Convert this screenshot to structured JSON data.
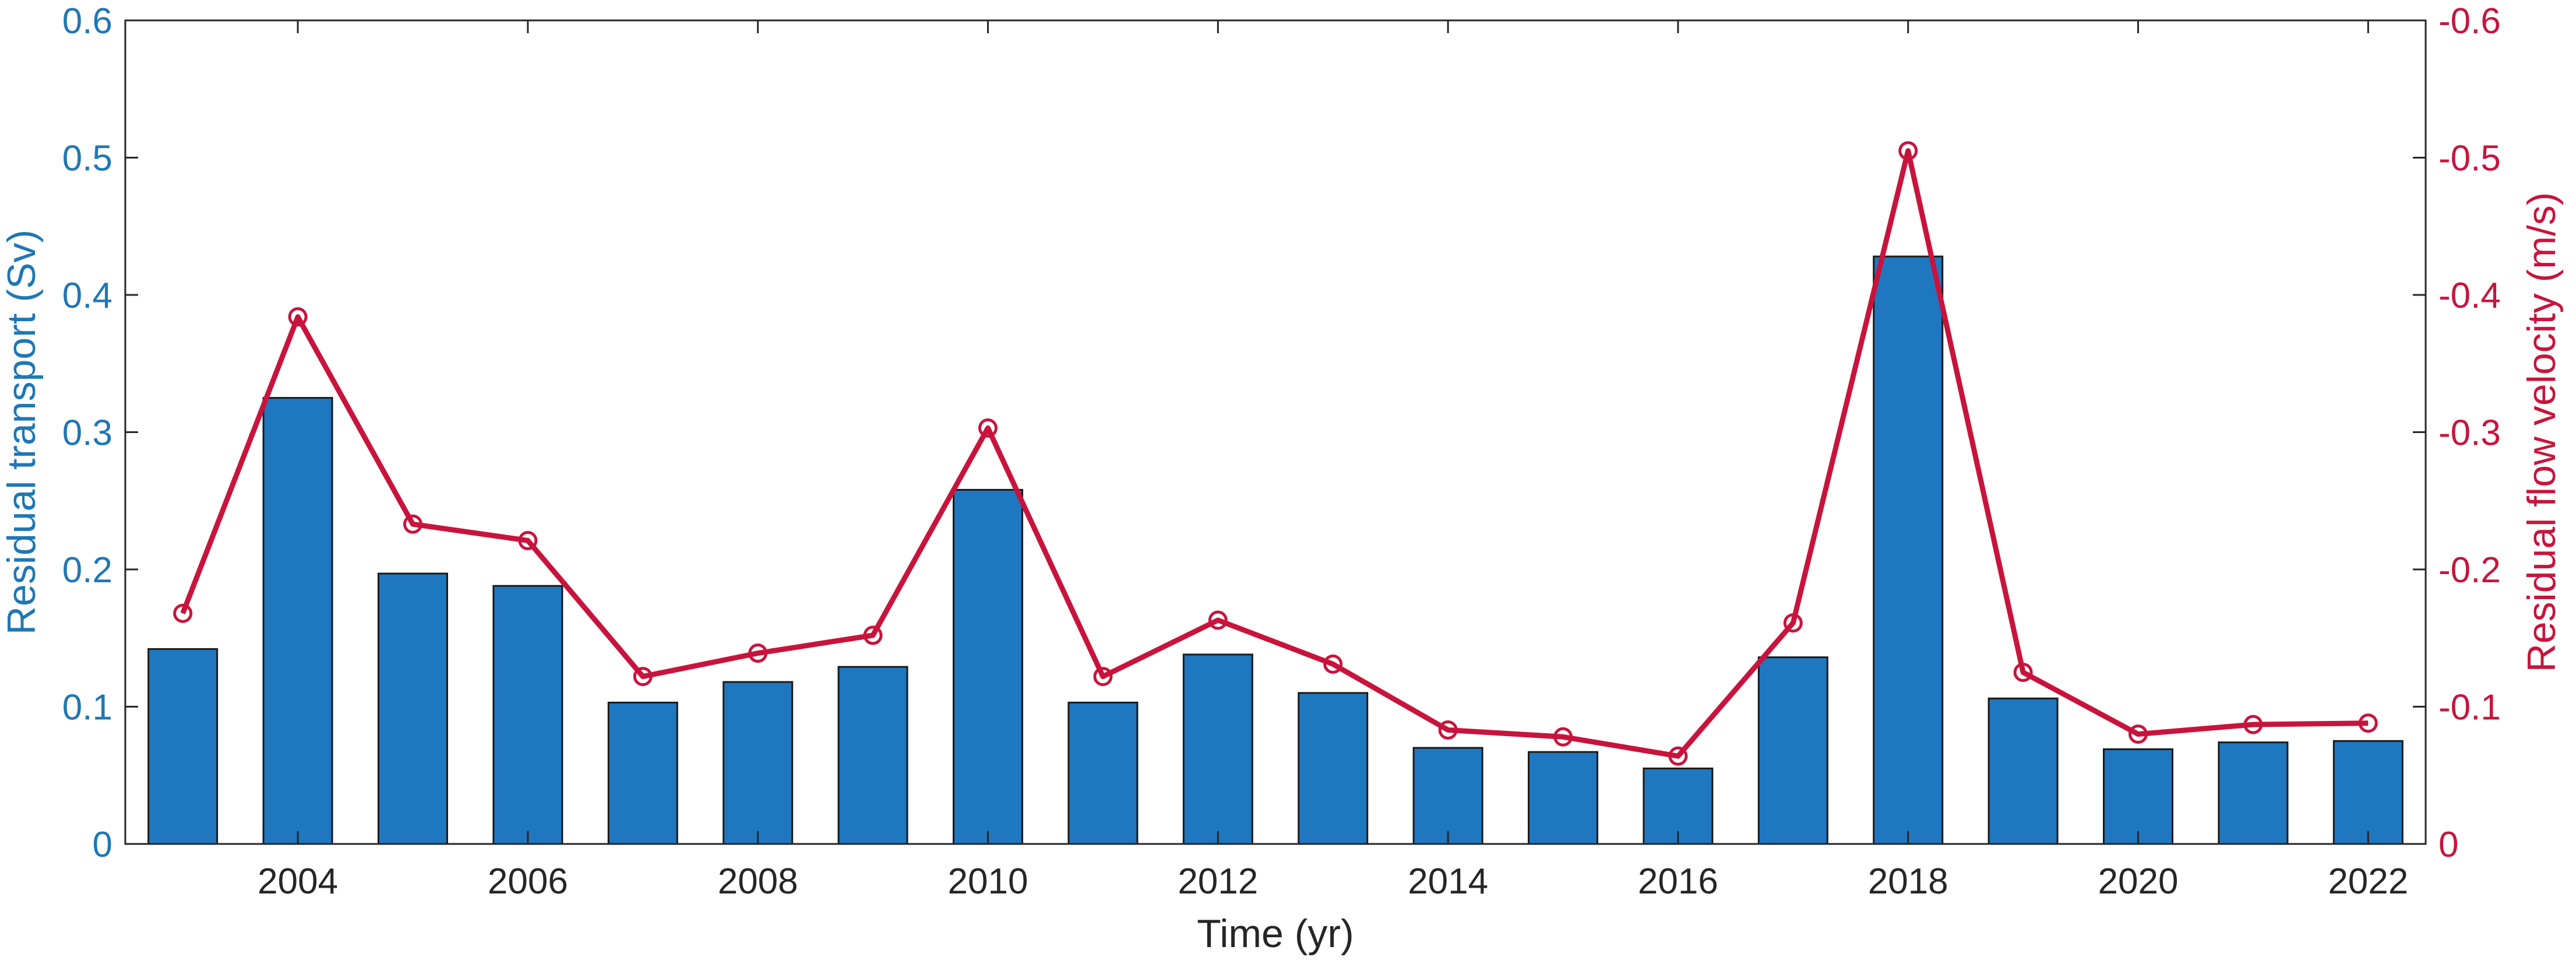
{
  "chart_data": {
    "type": "bar",
    "xlabel": "Time (yr)",
    "ylabel_left": "Residual transport (Sv)",
    "ylabel_right": "Residual flow velocity (m/s)",
    "x": [
      2003,
      2004,
      2005,
      2006,
      2007,
      2008,
      2009,
      2010,
      2011,
      2012,
      2013,
      2014,
      2015,
      2016,
      2017,
      2018,
      2019,
      2020,
      2021,
      2022
    ],
    "x_ticks": [
      2004,
      2006,
      2008,
      2010,
      2012,
      2014,
      2016,
      2018,
      2020,
      2022
    ],
    "ylim_left": [
      0,
      0.6
    ],
    "y_ticks_left": [
      "0",
      "0.1",
      "0.2",
      "0.3",
      "0.4",
      "0.5",
      "0.6"
    ],
    "ylim_right": [
      0,
      -0.6
    ],
    "y_ticks_right": [
      "0",
      "-0.1",
      "-0.2",
      "-0.3",
      "-0.4",
      "-0.5",
      "-0.6"
    ],
    "right_axis_reversed": true,
    "grid": false,
    "series": [
      {
        "axis": "left",
        "type": "bar",
        "color": "#1f77bf",
        "values": [
          0.142,
          0.325,
          0.197,
          0.188,
          0.103,
          0.118,
          0.129,
          0.258,
          0.103,
          0.138,
          0.11,
          0.07,
          0.067,
          0.055,
          0.136,
          0.428,
          0.106,
          0.069,
          0.074,
          0.075
        ]
      },
      {
        "axis": "right",
        "type": "line",
        "marker": "open-circle",
        "color": "#c8143c",
        "values": [
          -0.168,
          -0.384,
          -0.233,
          -0.221,
          -0.122,
          -0.139,
          -0.152,
          -0.303,
          -0.122,
          -0.163,
          -0.131,
          -0.083,
          -0.078,
          -0.064,
          -0.161,
          -0.505,
          -0.125,
          -0.08,
          -0.087,
          -0.088
        ]
      }
    ]
  }
}
